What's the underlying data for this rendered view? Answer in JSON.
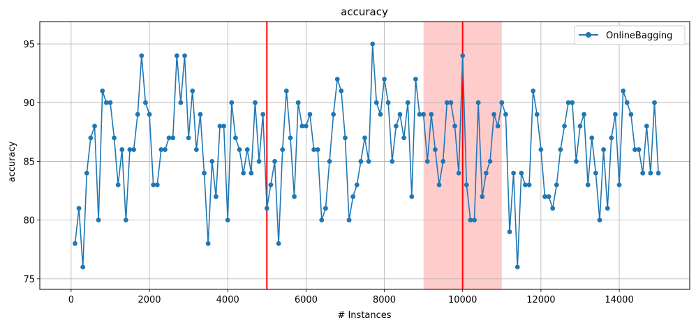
{
  "chart_data": {
    "type": "line",
    "title": "accuracy",
    "xlabel": "# Instances",
    "ylabel": "accuracy",
    "xlim": [
      -800,
      15800
    ],
    "ylim": [
      74.1,
      96.9
    ],
    "xticks": [
      0,
      2000,
      4000,
      6000,
      8000,
      10000,
      12000,
      14000
    ],
    "yticks": [
      75,
      80,
      85,
      90,
      95
    ],
    "grid": true,
    "legend_position": "top-right",
    "vlines": [
      {
        "x": 5000,
        "color": "#ff0000"
      },
      {
        "x": 10000,
        "color": "#ff0000"
      }
    ],
    "shaded_regions": [
      {
        "x_start": 9000,
        "x_end": 11000,
        "color": "#ffcccc"
      }
    ],
    "series": [
      {
        "name": "OnlineBagging",
        "color": "#1f77b4",
        "x": [
          100,
          200,
          300,
          400,
          500,
          600,
          700,
          800,
          900,
          1000,
          1100,
          1200,
          1300,
          1400,
          1500,
          1600,
          1700,
          1800,
          1900,
          2000,
          2100,
          2200,
          2300,
          2400,
          2500,
          2600,
          2700,
          2800,
          2900,
          3000,
          3100,
          3200,
          3300,
          3400,
          3500,
          3600,
          3700,
          3800,
          3900,
          4000,
          4100,
          4200,
          4300,
          4400,
          4500,
          4600,
          4700,
          4800,
          4900,
          5000,
          5100,
          5200,
          5300,
          5400,
          5500,
          5600,
          5700,
          5800,
          5900,
          6000,
          6100,
          6200,
          6300,
          6400,
          6500,
          6600,
          6700,
          6800,
          6900,
          7000,
          7100,
          7200,
          7300,
          7400,
          7500,
          7600,
          7700,
          7800,
          7900,
          8000,
          8100,
          8200,
          8300,
          8400,
          8500,
          8600,
          8700,
          8800,
          8900,
          9000,
          9100,
          9200,
          9300,
          9400,
          9500,
          9600,
          9700,
          9800,
          9900,
          10000,
          10100,
          10200,
          10300,
          10400,
          10500,
          10600,
          10700,
          10800,
          10900,
          11000,
          11100,
          11200,
          11300,
          11400,
          11500,
          11600,
          11700,
          11800,
          11900,
          12000,
          12100,
          12200,
          12300,
          12400,
          12500,
          12600,
          12700,
          12800,
          12900,
          13000,
          13100,
          13200,
          13300,
          13400,
          13500,
          13600,
          13700,
          13800,
          13900,
          14000,
          14100,
          14200,
          14300,
          14400,
          14500,
          14600,
          14700,
          14800,
          14900,
          15000
        ],
        "values": [
          78,
          81,
          76,
          84,
          87,
          88,
          80,
          91,
          90,
          90,
          87,
          83,
          86,
          80,
          86,
          86,
          89,
          94,
          90,
          89,
          83,
          83,
          86,
          86,
          87,
          87,
          94,
          90,
          94,
          87,
          91,
          86,
          89,
          84,
          78,
          85,
          82,
          88,
          88,
          80,
          90,
          87,
          86,
          84,
          86,
          84,
          90,
          85,
          89,
          81,
          83,
          85,
          78,
          86,
          91,
          87,
          82,
          90,
          88,
          88,
          89,
          86,
          86,
          80,
          81,
          85,
          89,
          92,
          91,
          87,
          80,
          82,
          83,
          85,
          87,
          85,
          95,
          90,
          89,
          92,
          90,
          85,
          88,
          89,
          87,
          90,
          82,
          92,
          89,
          89,
          85,
          89,
          86,
          83,
          85,
          90,
          90,
          88,
          84,
          94,
          83,
          80,
          80,
          90,
          82,
          84,
          85,
          89,
          88,
          90,
          89,
          79,
          84,
          76,
          84,
          83,
          83,
          91,
          89,
          86,
          82,
          82,
          81,
          83,
          86,
          88,
          90,
          90,
          85,
          88,
          89,
          83,
          87,
          84,
          80,
          86,
          81,
          87,
          89,
          83,
          91,
          90,
          89,
          86,
          86,
          84,
          88,
          84,
          90,
          84
        ]
      }
    ]
  }
}
